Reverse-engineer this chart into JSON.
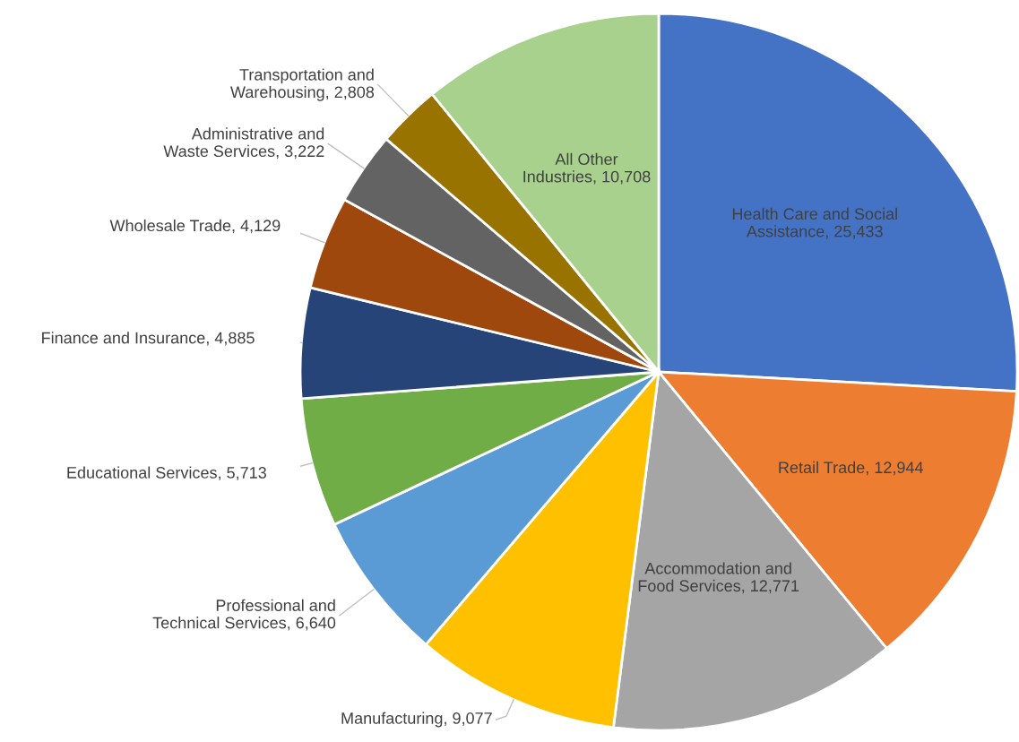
{
  "chart_data": {
    "type": "pie",
    "categories": [
      "Health Care and Social\nAssistance",
      "Retail Trade",
      "Accommodation and\nFood Services",
      "Manufacturing",
      "Professional and\nTechnical Services",
      "Educational Services",
      "Finance and Insurance",
      "Wholesale Trade",
      "Administrative and\nWaste Services",
      "Transportation and\nWarehousing",
      "All Other Industries"
    ],
    "value_labels": [
      "25,433",
      "12,944",
      "12,771",
      "9,077",
      "6,640",
      "5,713",
      "4,885",
      "4,129",
      "3,222",
      "2,808",
      "10,708"
    ],
    "values": [
      25433,
      12944,
      12771,
      9077,
      6640,
      5713,
      4885,
      4129,
      3222,
      2808,
      10708
    ],
    "colors": [
      "#4472c4",
      "#ed7d31",
      "#a5a5a5",
      "#ffc000",
      "#5b9bd5",
      "#70ad47",
      "#264478",
      "#9e480e",
      "#636363",
      "#997300",
      "#a9d18e"
    ]
  }
}
